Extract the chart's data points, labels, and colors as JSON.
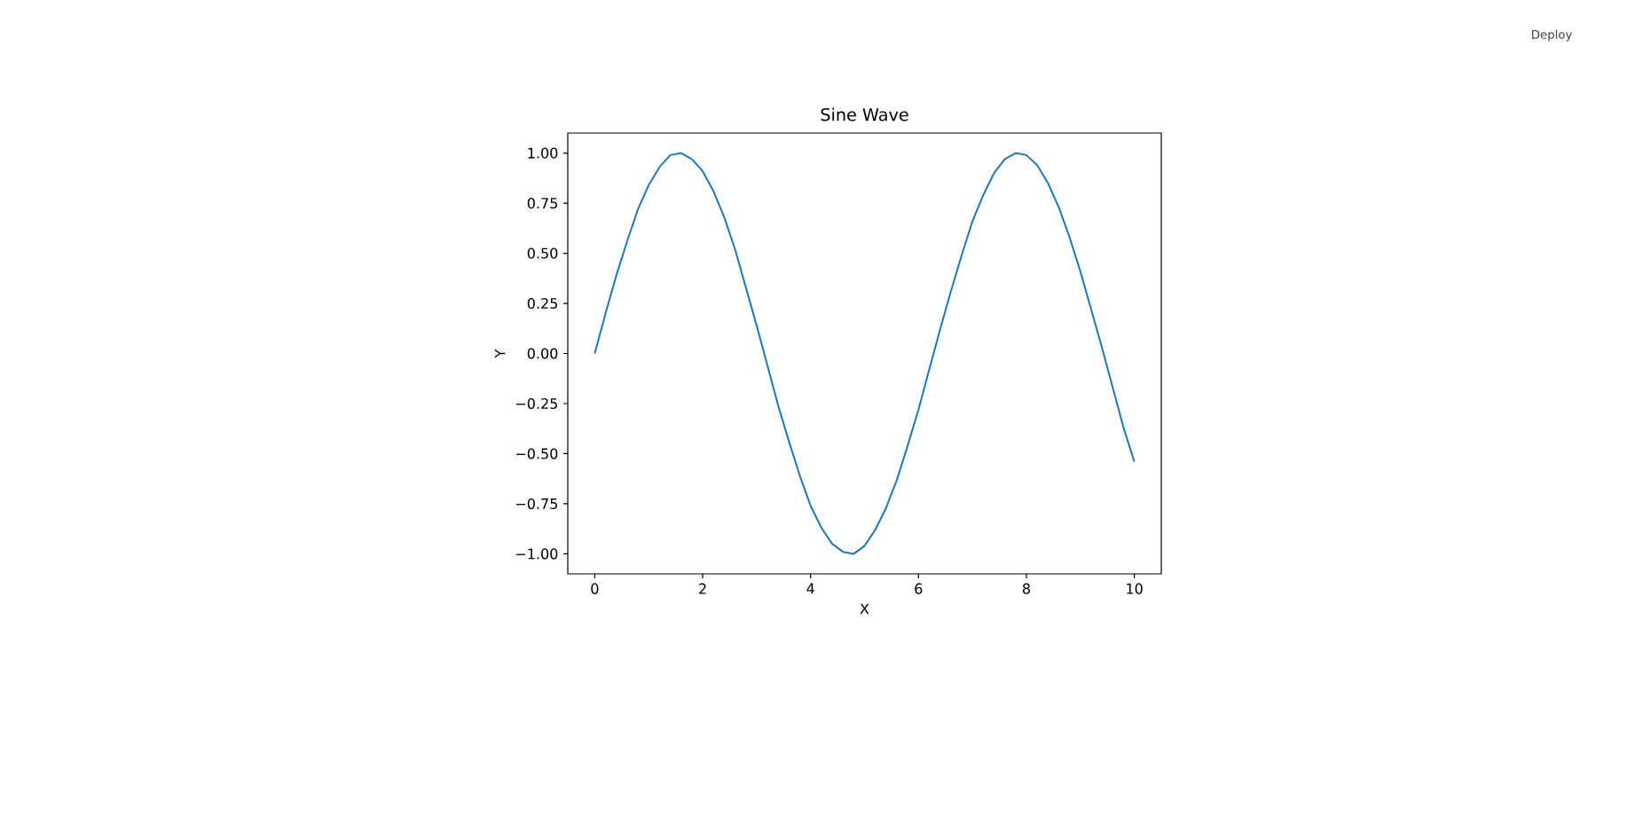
{
  "chart_data": {
    "type": "line",
    "title": "Sine Wave",
    "xlabel": "X",
    "ylabel": "Y",
    "annotations": [
      "Deploy"
    ],
    "x": [
      0,
      0.2,
      0.4,
      0.6,
      0.8,
      1.0,
      1.2,
      1.4,
      1.6,
      1.8,
      2.0,
      2.2,
      2.4,
      2.6,
      2.8,
      3.0,
      3.2,
      3.4,
      3.6,
      3.8,
      4.0,
      4.2,
      4.4,
      4.6,
      4.8,
      5.0,
      5.2,
      5.4,
      5.6,
      5.8,
      6.0,
      6.2,
      6.4,
      6.6,
      6.8,
      7.0,
      7.2,
      7.4,
      7.6,
      7.8,
      8.0,
      8.2,
      8.4,
      8.6,
      8.8,
      9.0,
      9.2,
      9.4,
      9.6,
      9.8,
      10.0
    ],
    "series": [
      {
        "color": "#1f77b4",
        "values": [
          0,
          0.2,
          0.39,
          0.56,
          0.72,
          0.84,
          0.93,
          0.99,
          1.0,
          0.97,
          0.91,
          0.81,
          0.68,
          0.52,
          0.33,
          0.14,
          -0.06,
          -0.26,
          -0.44,
          -0.61,
          -0.76,
          -0.87,
          -0.95,
          -0.99,
          -1.0,
          -0.96,
          -0.88,
          -0.77,
          -0.63,
          -0.46,
          -0.28,
          -0.08,
          0.12,
          0.31,
          0.49,
          0.66,
          0.79,
          0.9,
          0.97,
          1.0,
          0.99,
          0.94,
          0.85,
          0.73,
          0.58,
          0.41,
          0.22,
          0.03,
          -0.17,
          -0.37,
          -0.54
        ]
      }
    ],
    "xlim": [
      -0.5,
      10.5
    ],
    "ylim": [
      -1.1,
      1.1
    ],
    "xticks": [
      0,
      2,
      4,
      6,
      8,
      10
    ],
    "yticks": [
      {
        "value": -1,
        "label": "−1.00"
      },
      {
        "value": -0.75,
        "label": "−0.75"
      },
      {
        "value": -0.5,
        "label": "−0.50"
      },
      {
        "value": -0.25,
        "label": "−0.25"
      },
      {
        "value": 0,
        "label": "0.00"
      },
      {
        "value": 0.25,
        "label": "0.25"
      },
      {
        "value": 0.5,
        "label": "0.50"
      },
      {
        "value": 0.75,
        "label": "0.75"
      },
      {
        "value": 1,
        "label": "1.00"
      }
    ]
  }
}
